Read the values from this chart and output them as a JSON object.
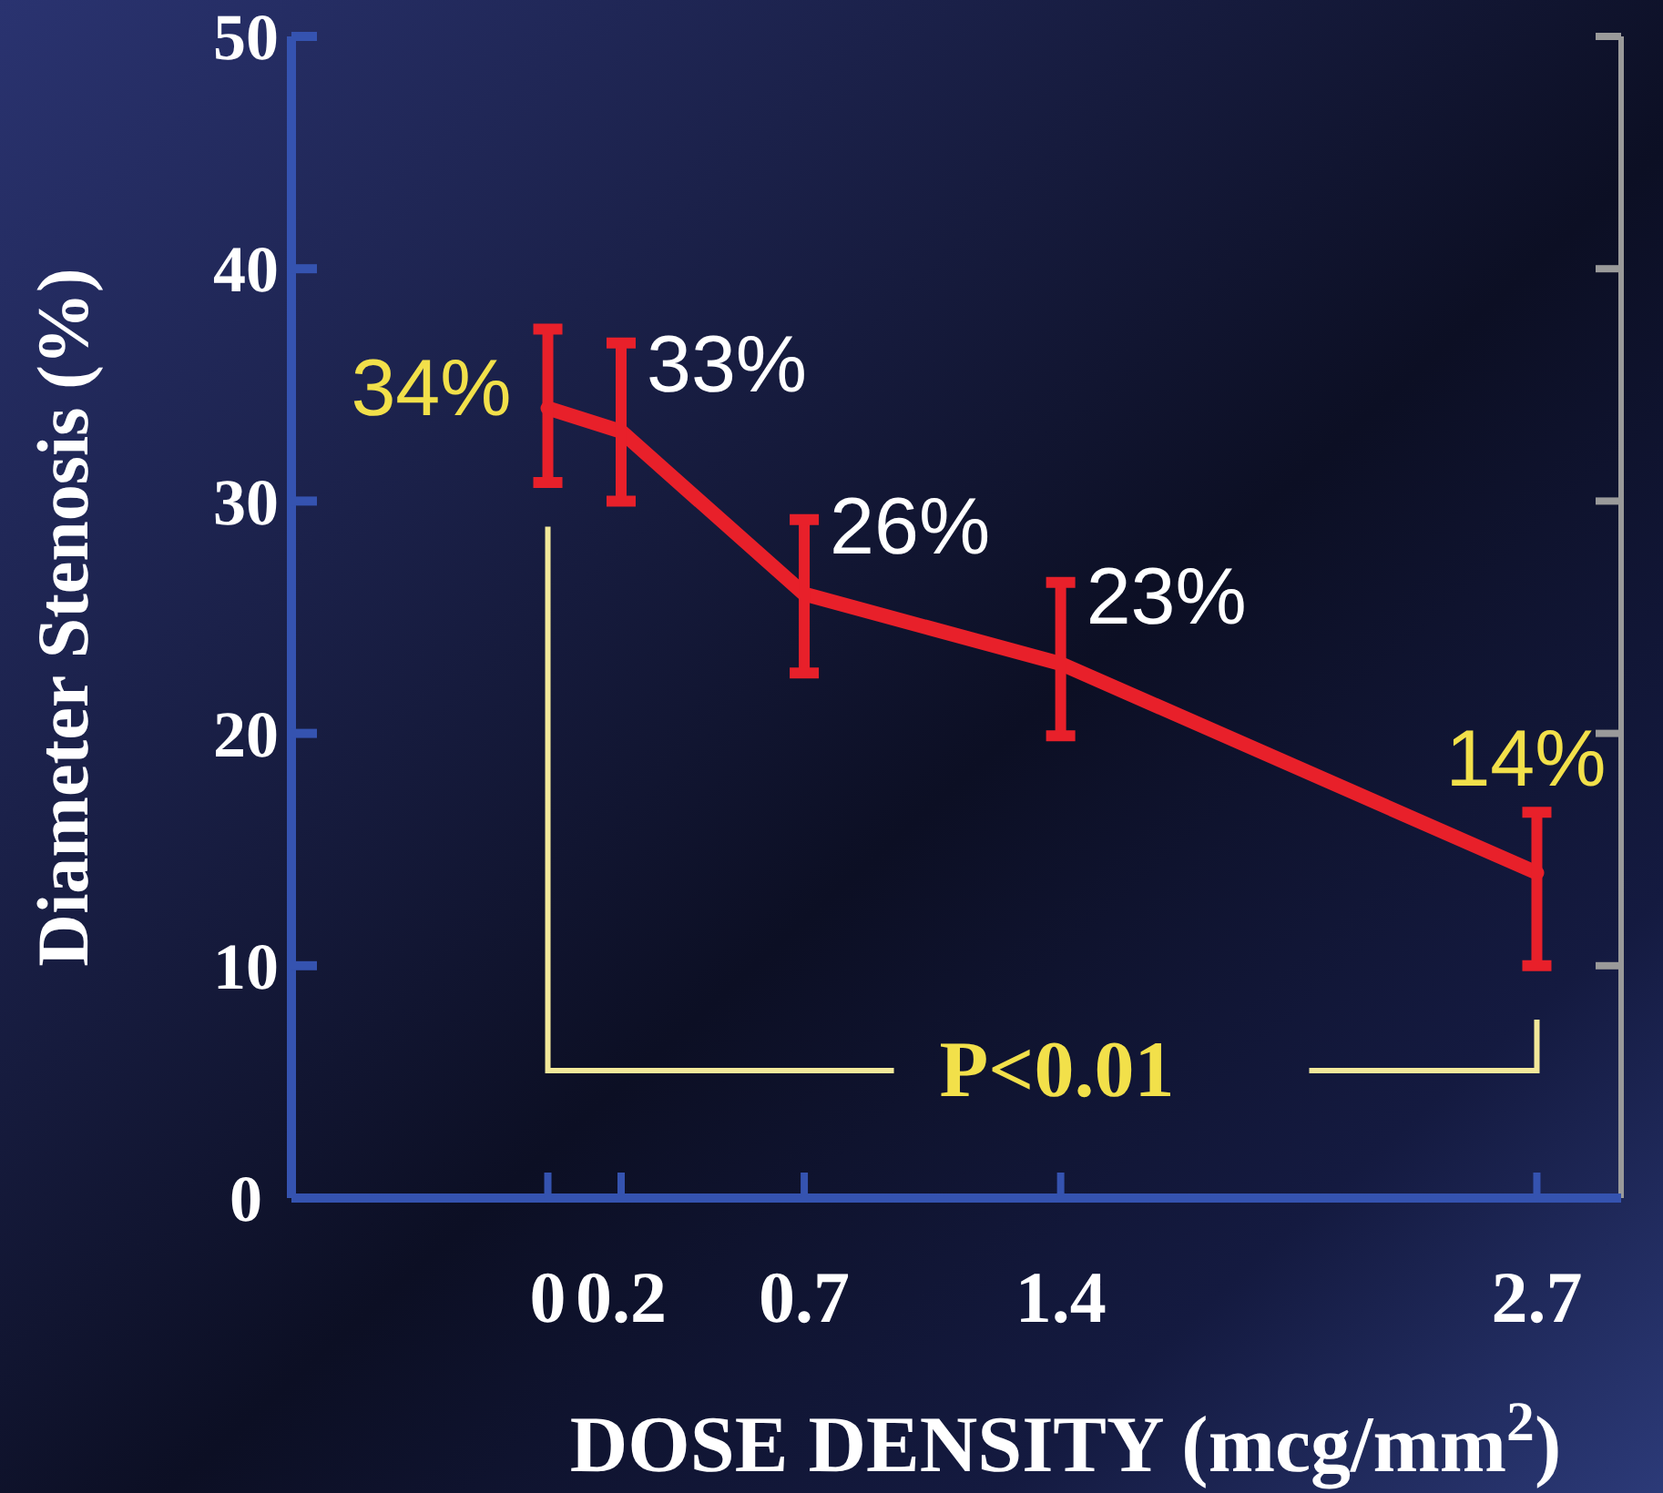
{
  "chart_data": {
    "type": "line",
    "xlabel": "DOSE DENSITY (mcg/mm$^{2}$)",
    "ylabel": "Diameter Stenosis (%)",
    "x": [
      0,
      0.2,
      0.7,
      1.4,
      2.7
    ],
    "series": [
      {
        "color": "#e8202a",
        "values": [
          34,
          33,
          26,
          23,
          14
        ],
        "errors": [
          [
            30.8,
            37.4
          ],
          [
            30,
            36.8
          ],
          [
            22.6,
            29.2
          ],
          [
            19.9,
            26.5
          ],
          [
            10,
            16.6
          ]
        ],
        "value_labels": [
          null,
          "33%",
          "26%",
          "23%",
          null
        ]
      }
    ],
    "xlim": [
      -0.7,
      2.93
    ],
    "xticks": [
      0,
      0.2,
      0.7,
      1.4,
      2.7
    ],
    "ylim": [
      0,
      50
    ],
    "yticks": [
      0,
      10,
      20,
      30,
      40,
      50
    ],
    "annotations": [
      {
        "text": "34%",
        "x": 0,
        "y": 34
      },
      {
        "text": "14%",
        "x": 2.7,
        "y": 14
      },
      "P<0.01"
    ],
    "grid": false,
    "marker": "none",
    "line_style": "solid"
  }
}
